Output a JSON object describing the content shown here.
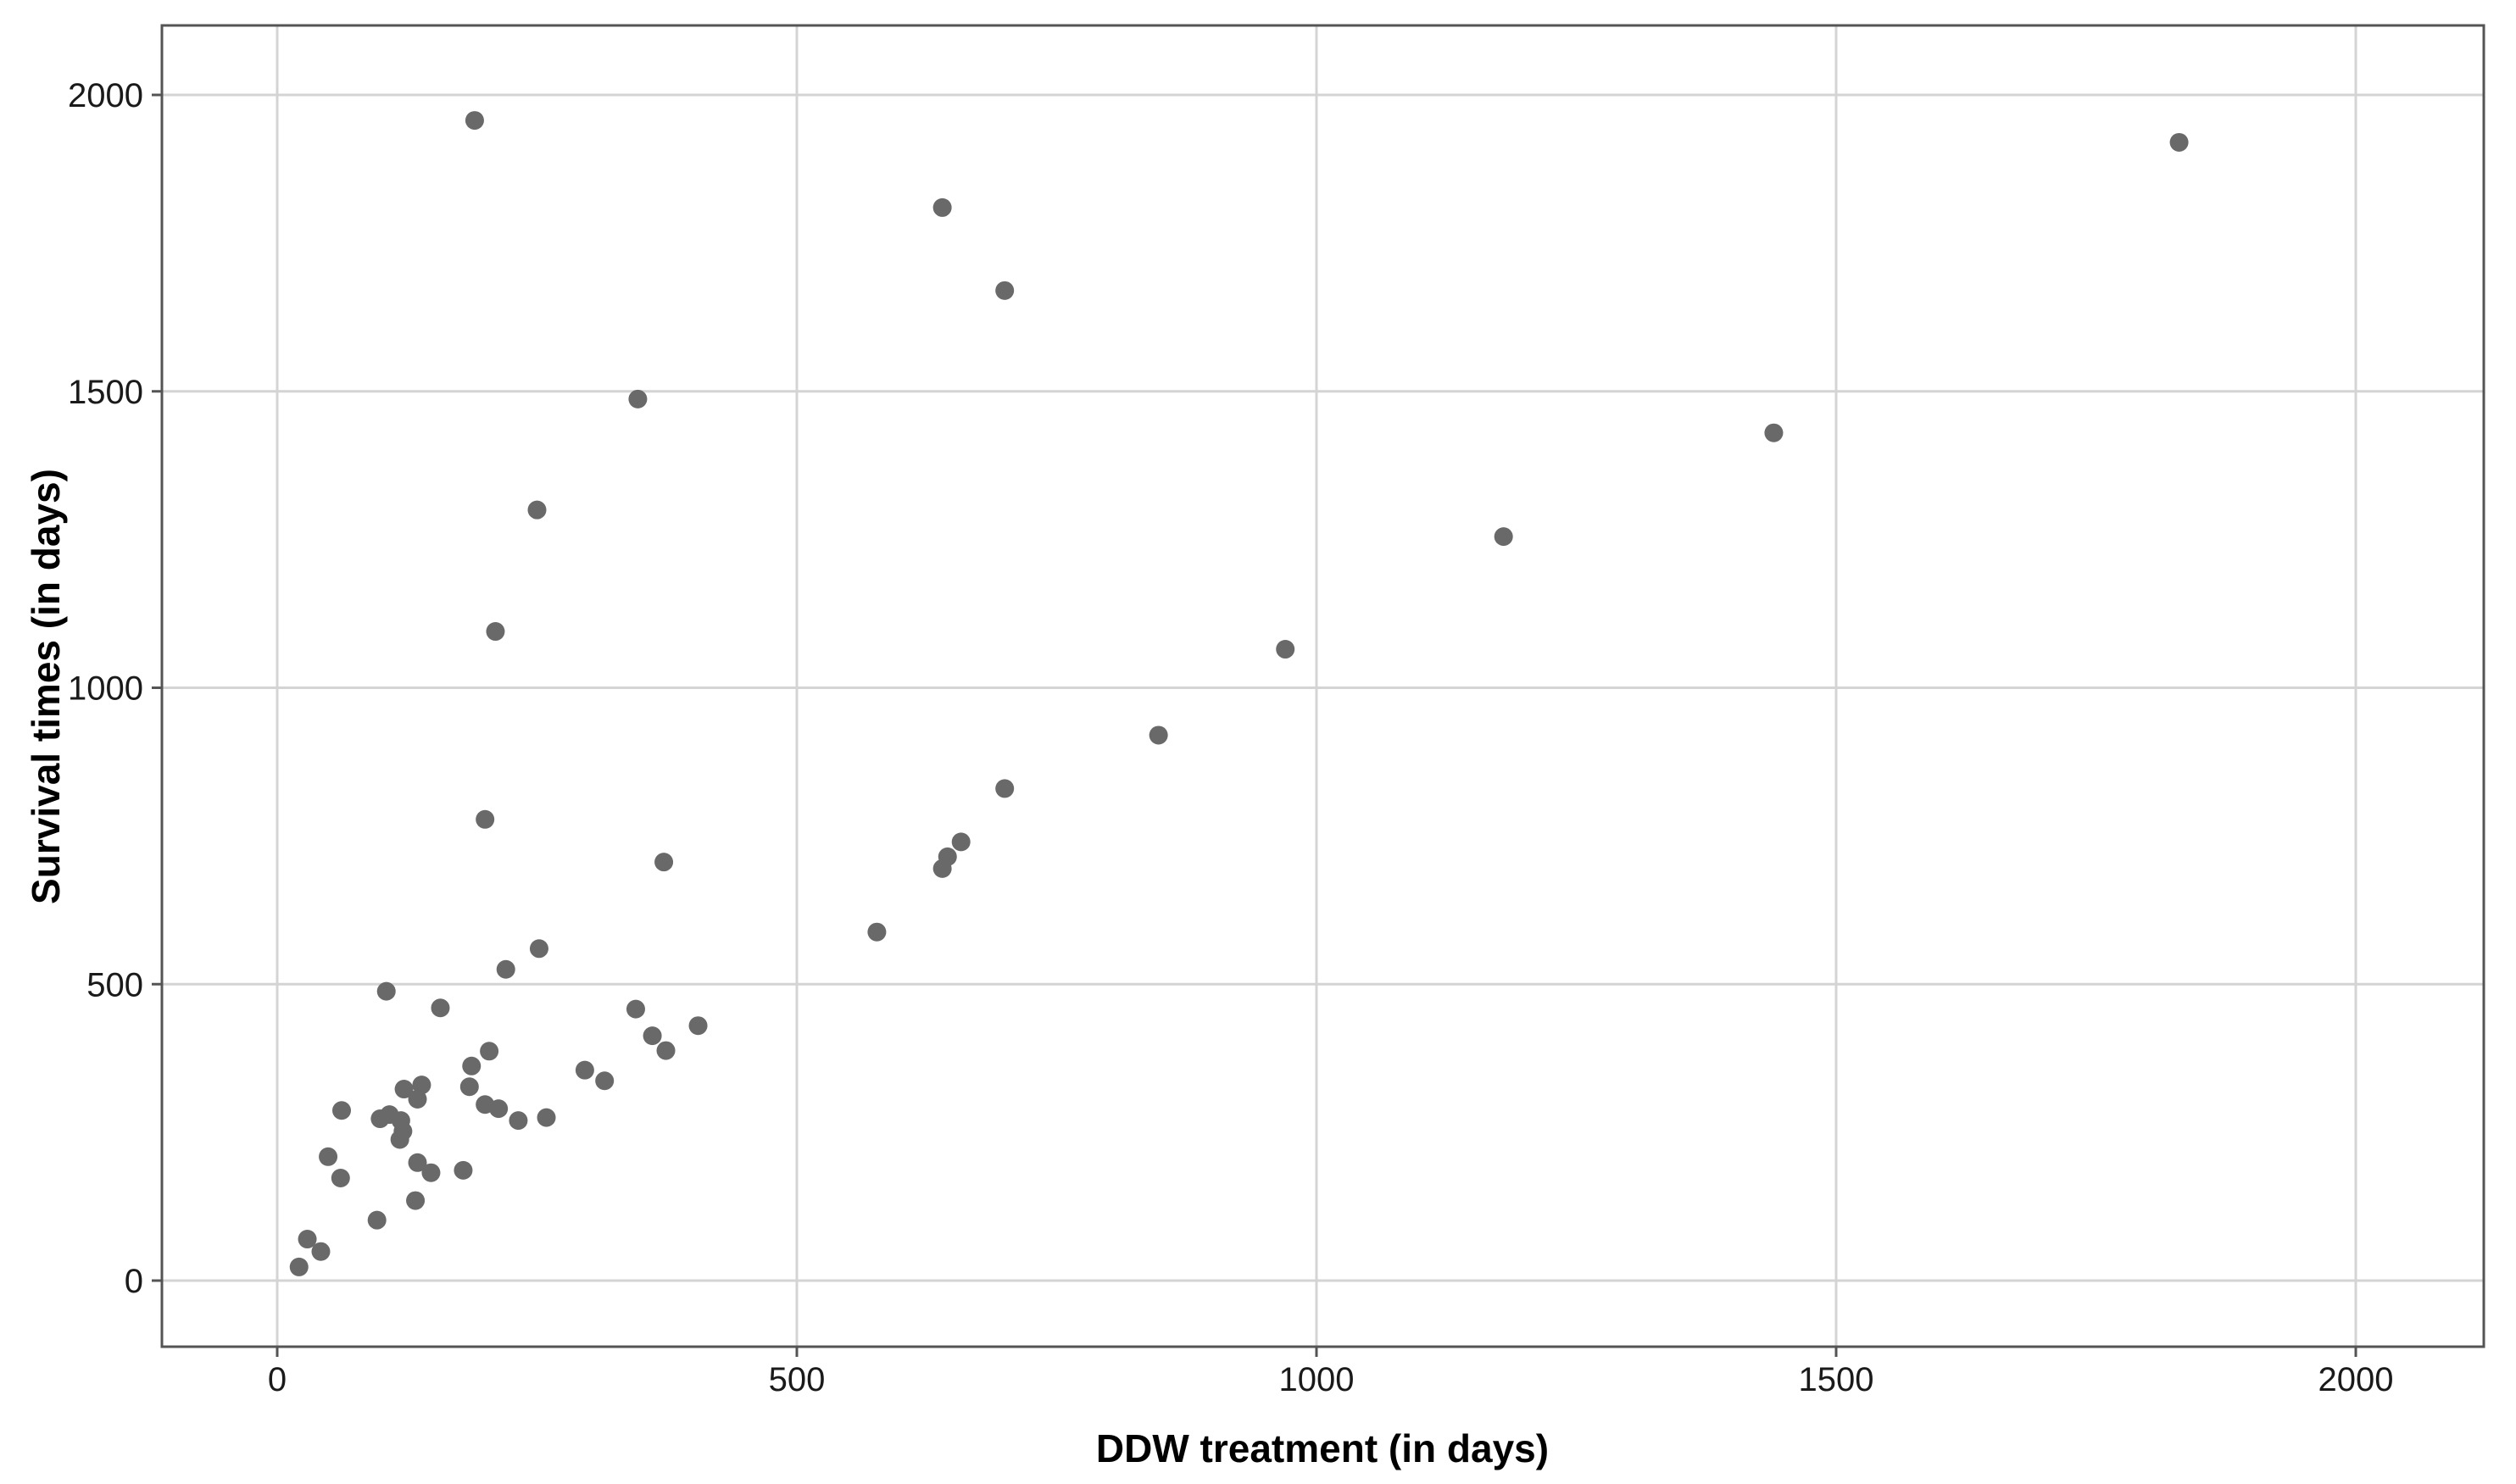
{
  "chart_data": {
    "type": "scatter",
    "title": "",
    "xlabel": "DDW treatment (in days)",
    "ylabel": "Survival times (in days)",
    "xticks": [
      0,
      500,
      1000,
      1500,
      2000
    ],
    "yticks": [
      0,
      500,
      1000,
      1500,
      2000
    ],
    "xtick_labels": [
      "0",
      "500",
      "1000",
      "1500",
      "2000"
    ],
    "ytick_labels": [
      "0",
      "500",
      "1000",
      "1500",
      "2000"
    ],
    "xlim": [
      -111,
      2123
    ],
    "ylim": [
      -112,
      2117
    ],
    "grid": true,
    "legend_position": "none",
    "marker": {
      "shape": "circle",
      "color": "#696969",
      "radius_px": 11
    },
    "colors": {
      "background": "#ffffff",
      "gridline": "#d4d4d4",
      "frame": "#545454",
      "tick_label": "#1a1a1a",
      "axis_title": "#000000"
    },
    "points": [
      [
        190,
        1957
      ],
      [
        640,
        1810
      ],
      [
        700,
        1670
      ],
      [
        347,
        1487
      ],
      [
        250,
        1300
      ],
      [
        210,
        1095
      ],
      [
        1830,
        1920
      ],
      [
        1440,
        1430
      ],
      [
        1180,
        1255
      ],
      [
        970,
        1065
      ],
      [
        848,
        920
      ],
      [
        700,
        830
      ],
      [
        658,
        740
      ],
      [
        645,
        715
      ],
      [
        640,
        695
      ],
      [
        577,
        588
      ],
      [
        372,
        706
      ],
      [
        200,
        778
      ],
      [
        252,
        560
      ],
      [
        220,
        525
      ],
      [
        105,
        488
      ],
      [
        157,
        460
      ],
      [
        345,
        458
      ],
      [
        405,
        430
      ],
      [
        361,
        413
      ],
      [
        374,
        388
      ],
      [
        204,
        387
      ],
      [
        187,
        362
      ],
      [
        185,
        327
      ],
      [
        296,
        355
      ],
      [
        315,
        337
      ],
      [
        122,
        323
      ],
      [
        139,
        330
      ],
      [
        135,
        306
      ],
      [
        99,
        273
      ],
      [
        108,
        280
      ],
      [
        119,
        270
      ],
      [
        121,
        252
      ],
      [
        118,
        238
      ],
      [
        200,
        297
      ],
      [
        213,
        290
      ],
      [
        232,
        270
      ],
      [
        259,
        275
      ],
      [
        62,
        287
      ],
      [
        49,
        209
      ],
      [
        61,
        173
      ],
      [
        135,
        199
      ],
      [
        148,
        182
      ],
      [
        179,
        186
      ],
      [
        133,
        135
      ],
      [
        96,
        102
      ],
      [
        29,
        70
      ],
      [
        42,
        49
      ],
      [
        21,
        23
      ]
    ]
  }
}
